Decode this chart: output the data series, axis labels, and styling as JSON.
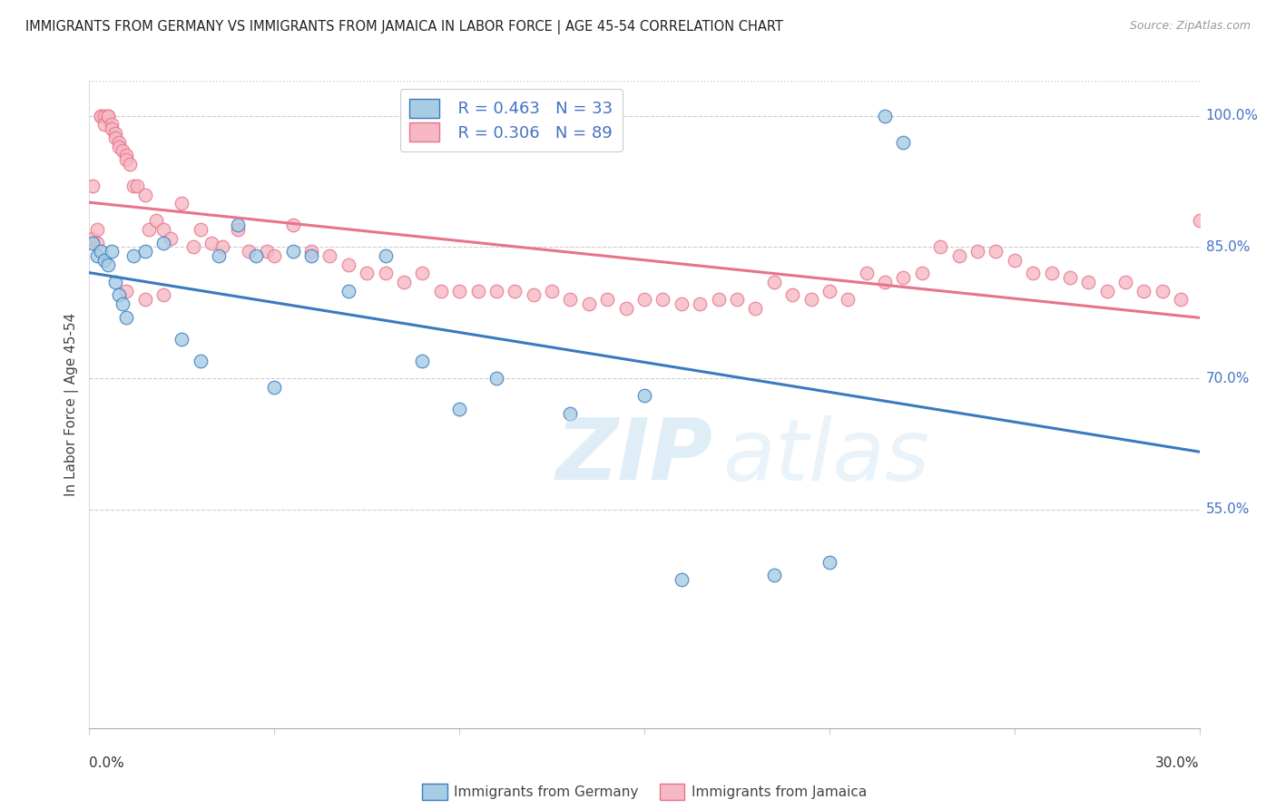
{
  "title": "IMMIGRANTS FROM GERMANY VS IMMIGRANTS FROM JAMAICA IN LABOR FORCE | AGE 45-54 CORRELATION CHART",
  "source": "Source: ZipAtlas.com",
  "ylabel": "In Labor Force | Age 45-54",
  "legend_label_germany": "Immigrants from Germany",
  "legend_label_jamaica": "Immigrants from Jamaica",
  "germany_R": "0.463",
  "germany_N": "33",
  "jamaica_R": "0.306",
  "jamaica_N": "89",
  "germany_color": "#a8cce4",
  "jamaica_color": "#f5b8c4",
  "germany_line_color": "#3a7abf",
  "jamaica_line_color": "#e8738a",
  "watermark_zip": "ZIP",
  "watermark_atlas": "atlas",
  "xlim": [
    0.0,
    0.3
  ],
  "ylim": [
    0.3,
    1.04
  ],
  "right_yticks": [
    1.0,
    0.85,
    0.7,
    0.55
  ],
  "right_ytick_labels": [
    "100.0%",
    "85.0%",
    "70.0%",
    "55.0%"
  ],
  "background_color": "#ffffff",
  "grid_color": "#cccccc",
  "germany_x": [
    0.001,
    0.002,
    0.003,
    0.004,
    0.005,
    0.006,
    0.007,
    0.008,
    0.009,
    0.01,
    0.012,
    0.015,
    0.02,
    0.025,
    0.03,
    0.035,
    0.04,
    0.045,
    0.05,
    0.055,
    0.06,
    0.07,
    0.08,
    0.09,
    0.1,
    0.11,
    0.13,
    0.15,
    0.16,
    0.185,
    0.2,
    0.215,
    0.22
  ],
  "germany_y": [
    0.855,
    0.84,
    0.845,
    0.835,
    0.83,
    0.845,
    0.81,
    0.795,
    0.785,
    0.77,
    0.84,
    0.845,
    0.855,
    0.745,
    0.72,
    0.84,
    0.875,
    0.84,
    0.69,
    0.845,
    0.84,
    0.8,
    0.84,
    0.72,
    0.665,
    0.7,
    0.66,
    0.68,
    0.47,
    0.475,
    0.49,
    1.0,
    0.97
  ],
  "jamaica_x": [
    0.001,
    0.001,
    0.002,
    0.002,
    0.003,
    0.003,
    0.004,
    0.004,
    0.005,
    0.005,
    0.006,
    0.006,
    0.007,
    0.007,
    0.008,
    0.008,
    0.009,
    0.01,
    0.01,
    0.011,
    0.012,
    0.013,
    0.015,
    0.016,
    0.018,
    0.02,
    0.022,
    0.025,
    0.028,
    0.03,
    0.033,
    0.036,
    0.04,
    0.043,
    0.048,
    0.05,
    0.055,
    0.06,
    0.065,
    0.07,
    0.075,
    0.08,
    0.085,
    0.09,
    0.095,
    0.1,
    0.105,
    0.11,
    0.115,
    0.12,
    0.125,
    0.13,
    0.135,
    0.14,
    0.145,
    0.15,
    0.155,
    0.16,
    0.165,
    0.17,
    0.175,
    0.18,
    0.185,
    0.19,
    0.195,
    0.2,
    0.205,
    0.21,
    0.215,
    0.22,
    0.225,
    0.23,
    0.235,
    0.24,
    0.245,
    0.25,
    0.255,
    0.26,
    0.265,
    0.27,
    0.275,
    0.28,
    0.285,
    0.29,
    0.295,
    0.3,
    0.01,
    0.015,
    0.02
  ],
  "jamaica_y": [
    0.86,
    0.92,
    0.87,
    0.855,
    1.0,
    1.0,
    1.0,
    0.99,
    1.0,
    1.0,
    0.99,
    0.985,
    0.98,
    0.975,
    0.97,
    0.965,
    0.96,
    0.955,
    0.95,
    0.945,
    0.92,
    0.92,
    0.91,
    0.87,
    0.88,
    0.87,
    0.86,
    0.9,
    0.85,
    0.87,
    0.855,
    0.85,
    0.87,
    0.845,
    0.845,
    0.84,
    0.875,
    0.845,
    0.84,
    0.83,
    0.82,
    0.82,
    0.81,
    0.82,
    0.8,
    0.8,
    0.8,
    0.8,
    0.8,
    0.795,
    0.8,
    0.79,
    0.785,
    0.79,
    0.78,
    0.79,
    0.79,
    0.785,
    0.785,
    0.79,
    0.79,
    0.78,
    0.81,
    0.795,
    0.79,
    0.8,
    0.79,
    0.82,
    0.81,
    0.815,
    0.82,
    0.85,
    0.84,
    0.845,
    0.845,
    0.835,
    0.82,
    0.82,
    0.815,
    0.81,
    0.8,
    0.81,
    0.8,
    0.8,
    0.79,
    0.88,
    0.8,
    0.79,
    0.795
  ]
}
